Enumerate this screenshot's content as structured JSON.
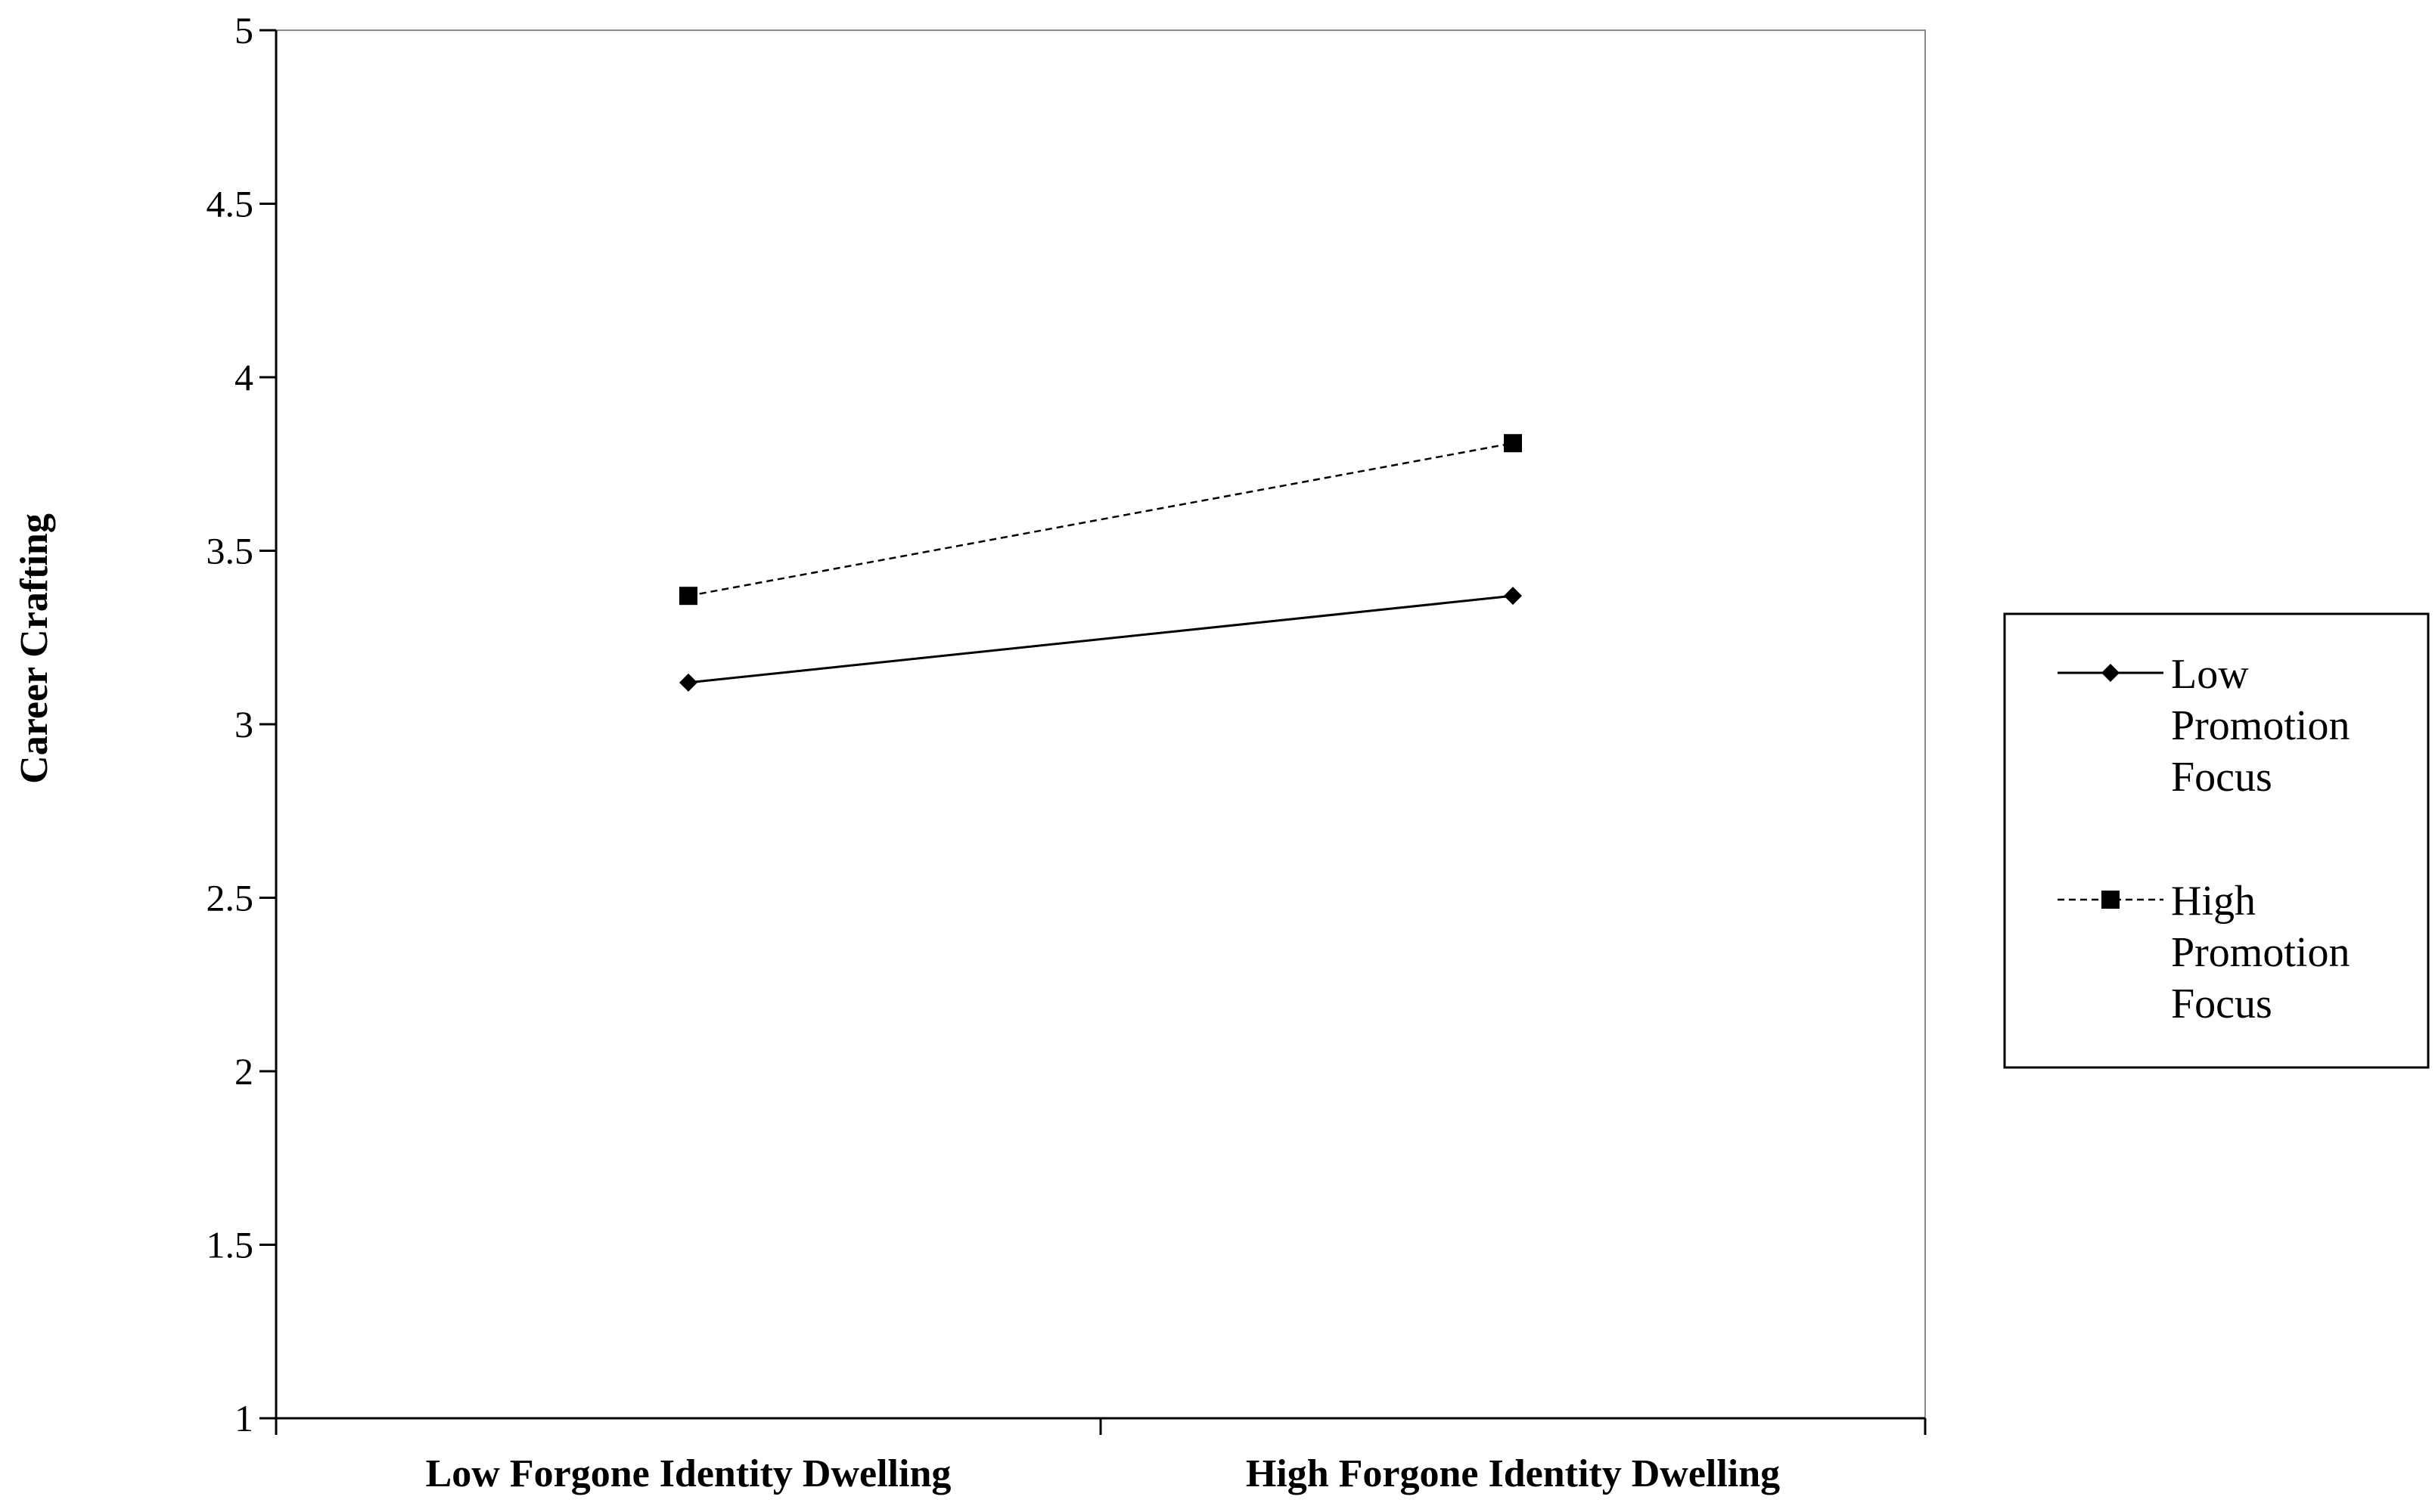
{
  "chart_data": {
    "type": "line",
    "title": "",
    "xlabel": "",
    "ylabel": "Career Crafting",
    "categories": [
      "Low Forgone Identity Dwelling",
      "High Forgone Identity Dwelling"
    ],
    "ylim": [
      1,
      5
    ],
    "yticks": [
      "1",
      "1.5",
      "2",
      "2.5",
      "3",
      "3.5",
      "4",
      "4.5",
      "5"
    ],
    "grid": false,
    "legend_position": "right",
    "series": [
      {
        "name": "Low Promotion Focus",
        "name_lines": [
          "Low",
          "Promotion",
          "Focus"
        ],
        "values": [
          3.12,
          3.37
        ],
        "line_style": "solid",
        "marker": "diamond",
        "color": "#000000"
      },
      {
        "name": "High Promotion Focus",
        "name_lines": [
          "High",
          "Promotion",
          "Focus"
        ],
        "values": [
          3.37,
          3.81
        ],
        "line_style": "dashed",
        "marker": "square",
        "color": "#000000"
      }
    ]
  }
}
